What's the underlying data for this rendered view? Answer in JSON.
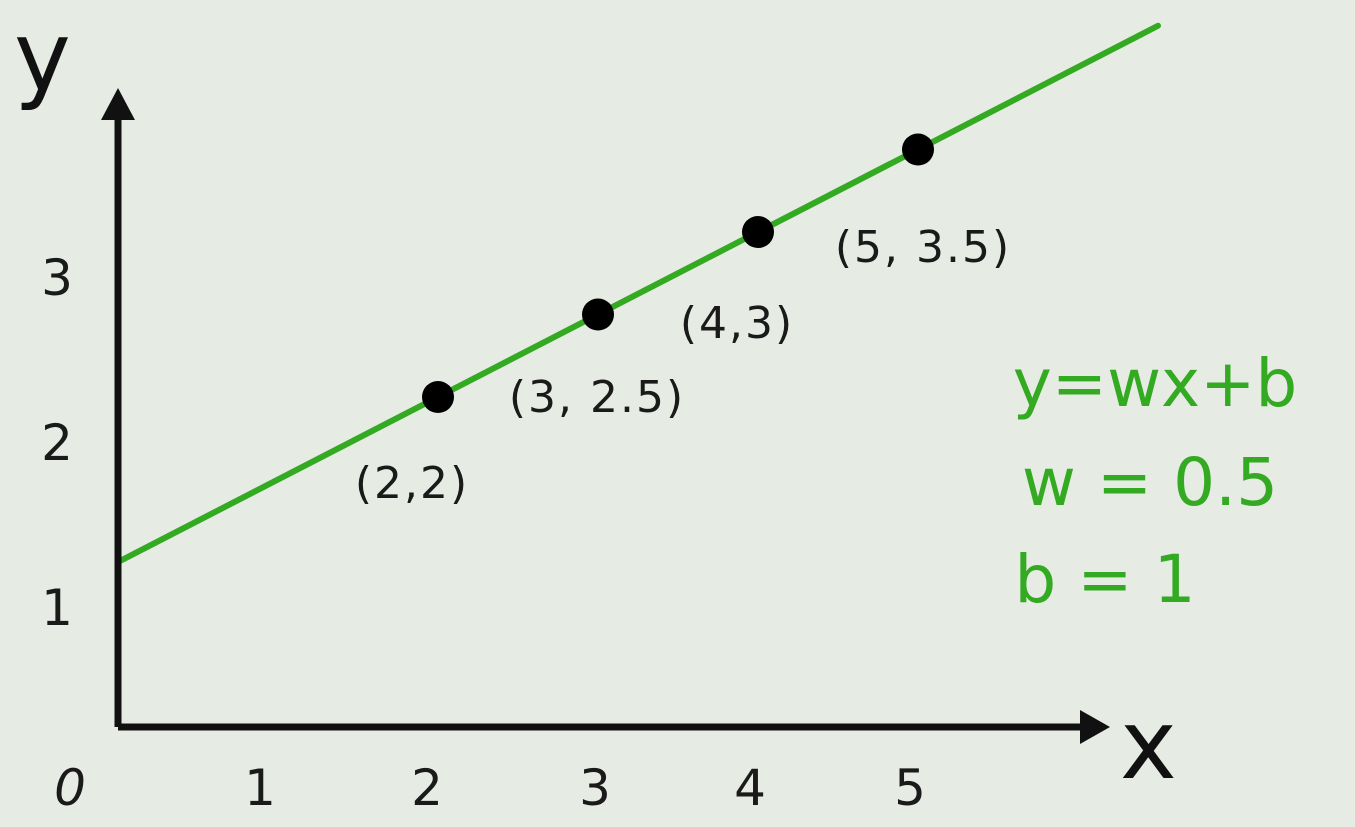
{
  "background": "#e6ebe4",
  "chart_data": {
    "type": "line",
    "xlabel": "x",
    "ylabel": "y",
    "x_ticks": [
      "0",
      "1",
      "2",
      "3",
      "4",
      "5"
    ],
    "y_ticks": [
      "1",
      "2",
      "3"
    ],
    "xlim": [
      0,
      6.7
    ],
    "ylim": [
      0,
      4.3
    ],
    "grid": false,
    "line_color": "#33aa22",
    "point_color": "#000000",
    "line": {
      "w": 0.5,
      "b": 1,
      "x_range": [
        0,
        6.5
      ]
    },
    "points": [
      {
        "x": 2,
        "y": 2,
        "label": "(2,2)"
      },
      {
        "x": 3,
        "y": 2.5,
        "label": "(3, 2.5)"
      },
      {
        "x": 4,
        "y": 3,
        "label": "(4,3)"
      },
      {
        "x": 5,
        "y": 3.5,
        "label": "(5, 3.5)"
      }
    ],
    "annotations": [
      "y=wx+b",
      "w = 0.5",
      "b = 1"
    ]
  }
}
